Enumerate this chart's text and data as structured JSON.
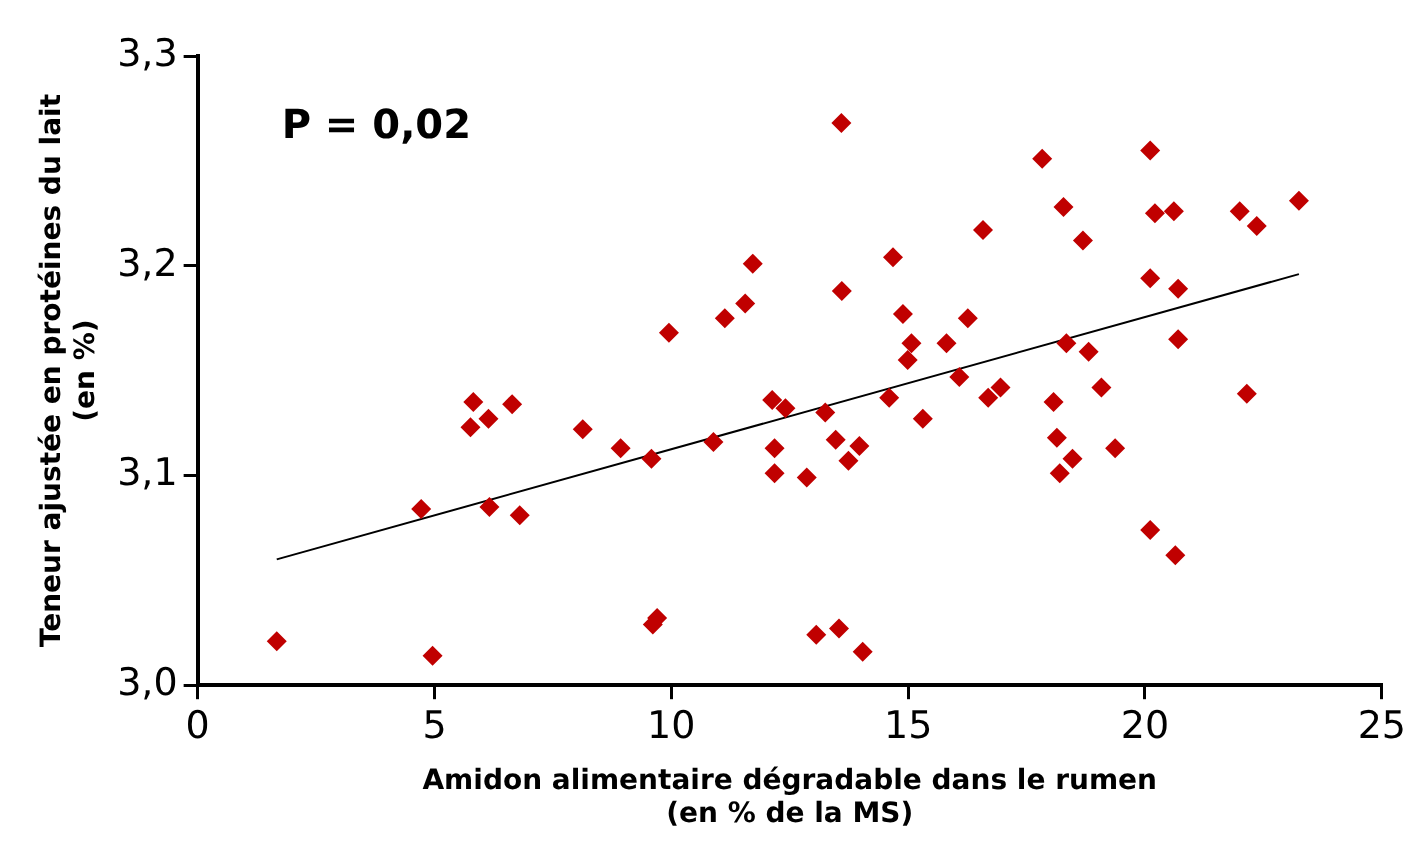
{
  "chart_data": {
    "type": "scatter",
    "xlabel": "Amidon alimentaire dégradable dans le rumen\n(en % de la MS)",
    "ylabel": "Teneur ajustée en protéines du lait\n(en %)",
    "annotations": [
      "P = 0,02"
    ],
    "grid": false,
    "legend": false,
    "xlim": [
      0,
      25
    ],
    "xticks": [
      0,
      5,
      10,
      15,
      20,
      25
    ],
    "ylim": [
      3.0,
      3.3
    ],
    "yticks": [
      {
        "value": 3.0,
        "label": "3,0"
      },
      {
        "value": 3.1,
        "label": "3,1"
      },
      {
        "value": 3.2,
        "label": "3,2"
      },
      {
        "value": 3.3,
        "label": "3,3"
      }
    ],
    "series": [
      {
        "marker": "diamond",
        "color": "#c00000",
        "x": [
          1.67,
          4.96,
          4.72,
          5.82,
          5.76,
          6.14,
          6.64,
          6.16,
          6.8,
          8.13,
          13.59,
          16.58,
          11.72,
          14.68,
          13.6,
          11.56,
          11.13,
          9.95,
          14.89,
          16.26,
          15.07,
          15.81,
          14.99,
          16.08,
          12.13,
          12.41,
          13.25,
          14.6,
          16.69,
          16.95,
          15.31,
          8.93,
          9.58,
          10.89,
          12.18,
          12.18,
          12.86,
          13.47,
          13.97,
          13.74,
          9.61,
          9.7,
          13.06,
          13.54,
          14.04,
          17.83,
          20.11,
          18.28,
          20.21,
          20.61,
          22.0,
          22.36,
          23.25,
          18.69,
          20.11,
          20.7,
          18.34,
          18.81,
          20.7,
          18.07,
          19.08,
          22.15,
          18.14,
          18.47,
          18.2,
          19.37,
          20.11,
          20.64
        ],
        "values": [
          3.021,
          3.014,
          3.084,
          3.135,
          3.123,
          3.127,
          3.134,
          3.085,
          3.081,
          3.122,
          3.268,
          3.217,
          3.201,
          3.204,
          3.188,
          3.182,
          3.175,
          3.168,
          3.177,
          3.175,
          3.163,
          3.163,
          3.155,
          3.147,
          3.136,
          3.132,
          3.13,
          3.137,
          3.137,
          3.142,
          3.127,
          3.113,
          3.108,
          3.116,
          3.113,
          3.101,
          3.099,
          3.117,
          3.114,
          3.107,
          3.029,
          3.032,
          3.024,
          3.027,
          3.016,
          3.251,
          3.255,
          3.228,
          3.225,
          3.226,
          3.226,
          3.219,
          3.231,
          3.212,
          3.194,
          3.189,
          3.163,
          3.159,
          3.165,
          3.135,
          3.142,
          3.139,
          3.118,
          3.108,
          3.101,
          3.113,
          3.074,
          3.062
        ]
      },
      {
        "type": "line",
        "marker": "none",
        "color": "#000000",
        "x": [
          1.67,
          23.25
        ],
        "values": [
          3.06,
          3.196
        ]
      }
    ]
  }
}
